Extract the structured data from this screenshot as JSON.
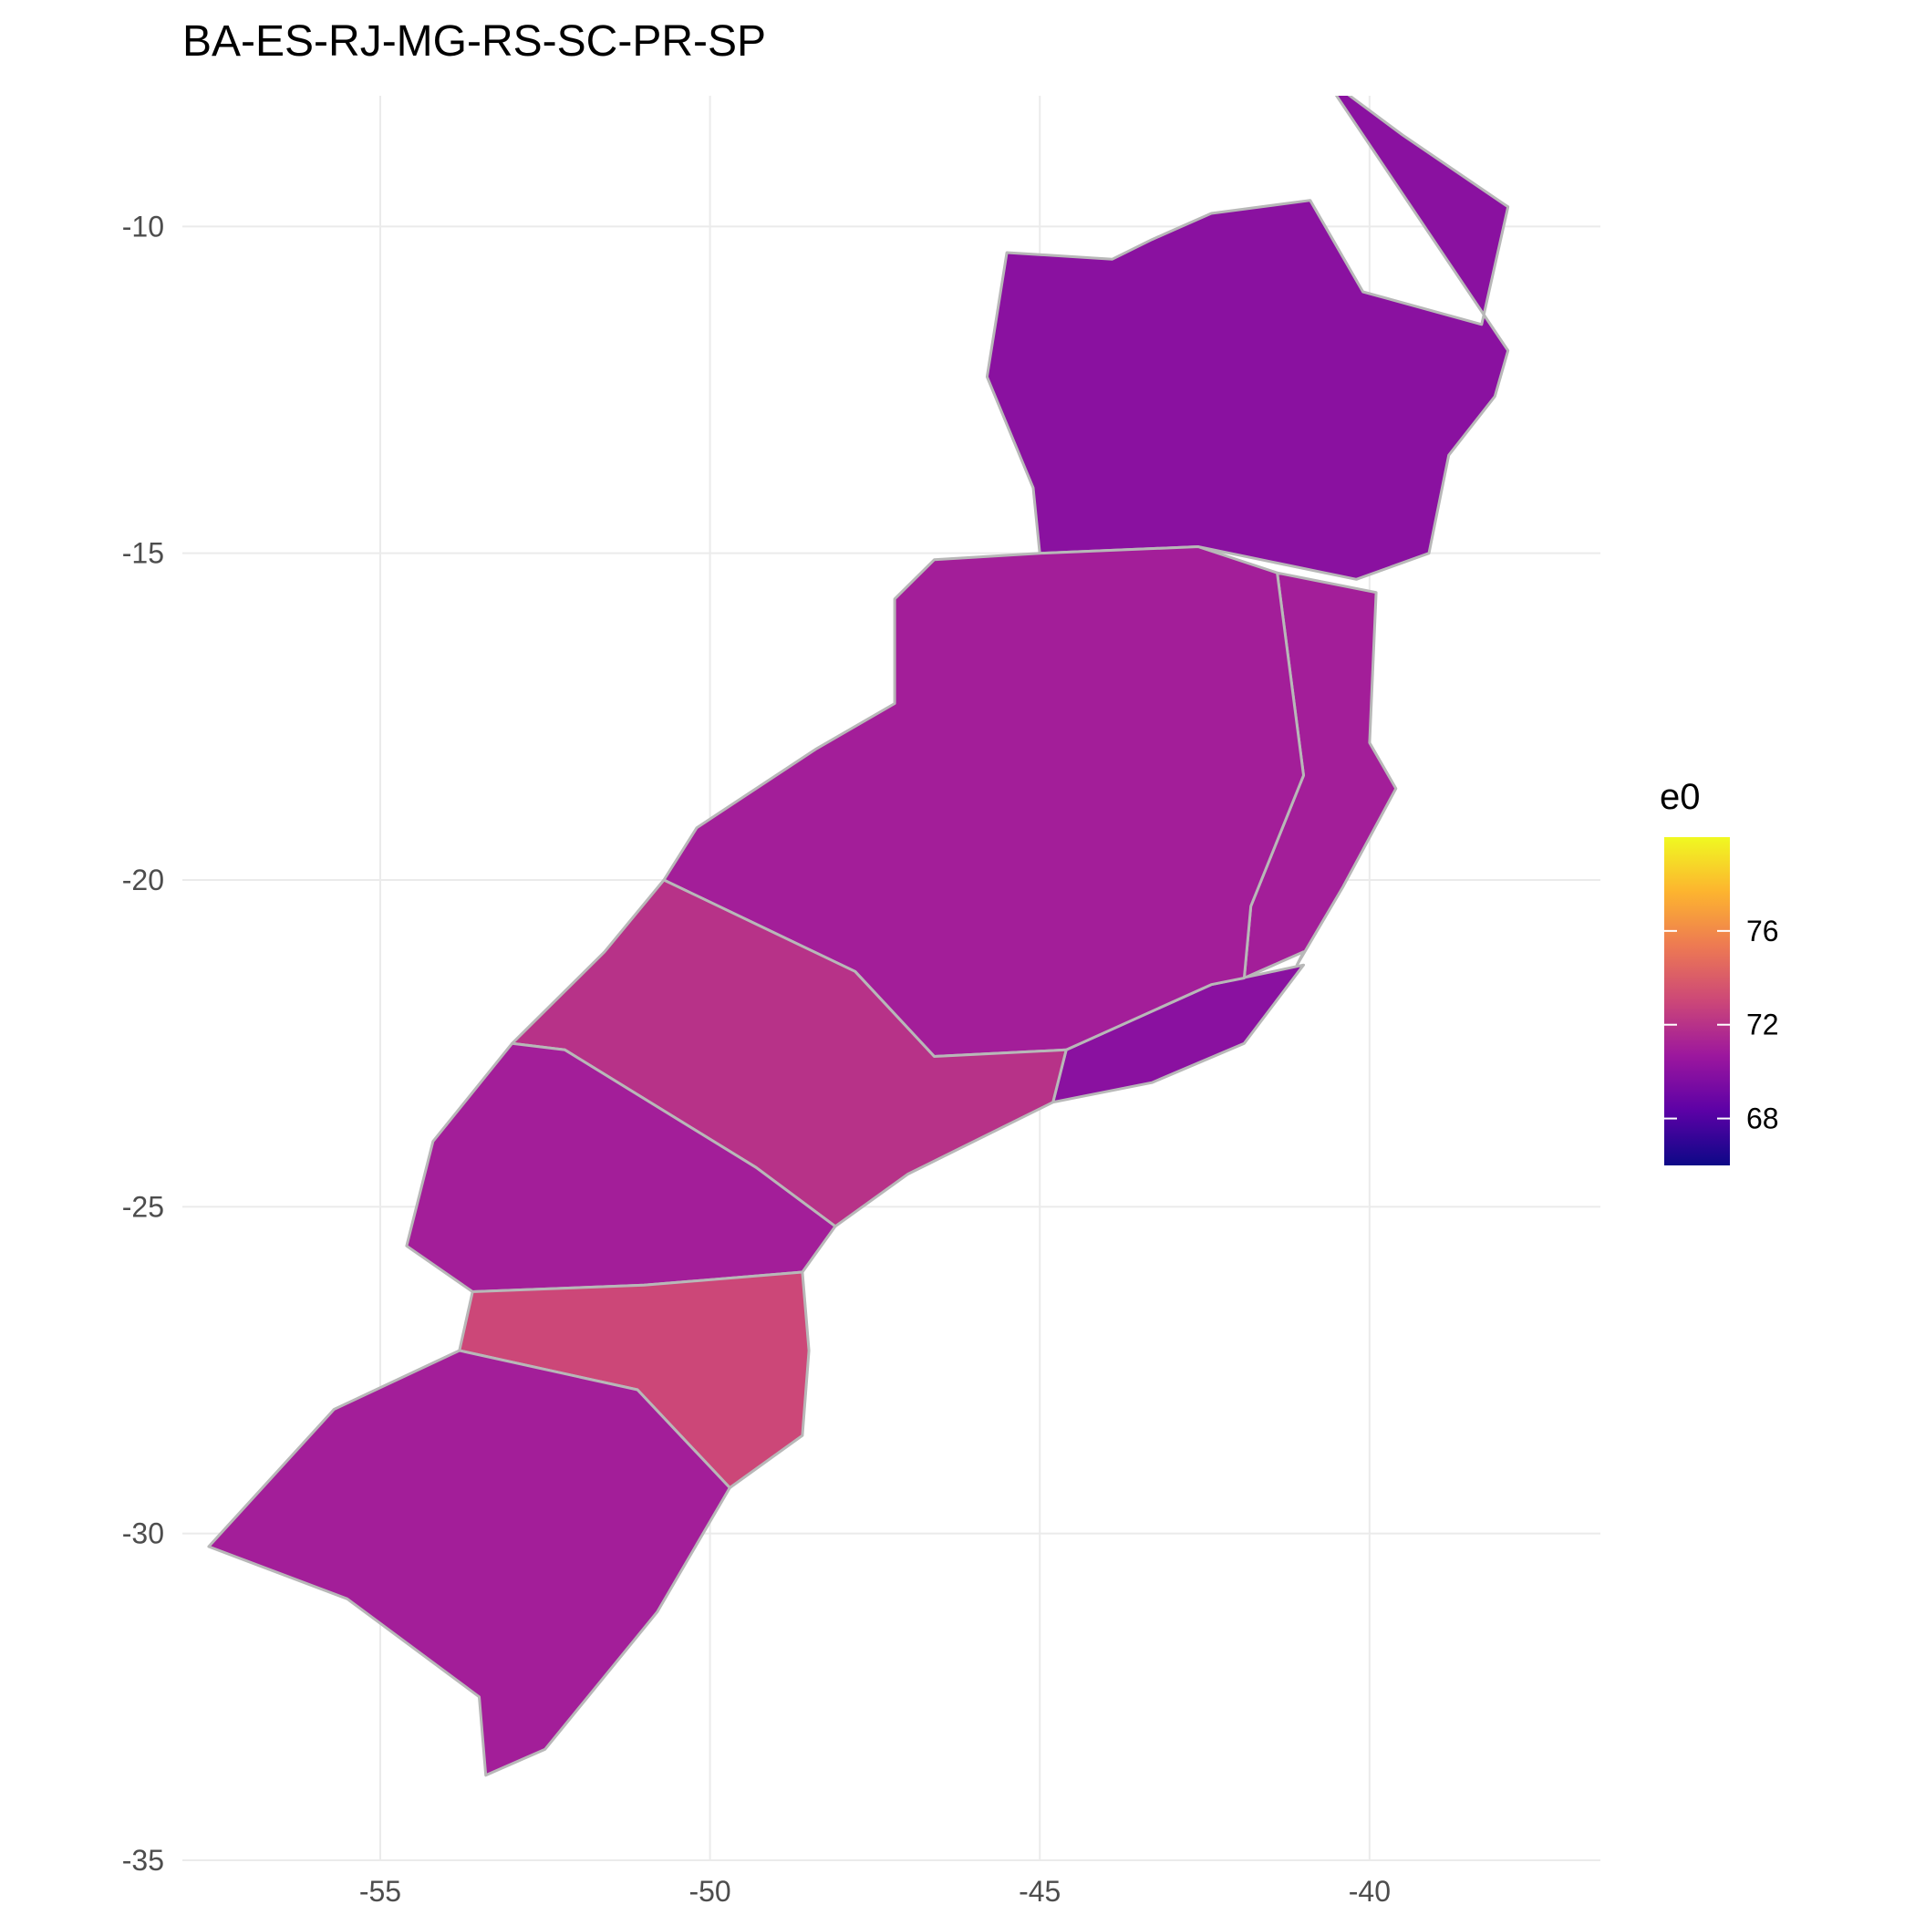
{
  "title": "BA-ES-RJ-MG-RS-SC-PR-SP",
  "chart_data": {
    "type": "heatmap",
    "subtype": "choropleth-map",
    "title": "BA-ES-RJ-MG-RS-SC-PR-SP",
    "x": {
      "label": "",
      "ticks": [
        "-55",
        "-50",
        "-45",
        "-40"
      ],
      "tick_values": [
        -55,
        -50,
        -45,
        -40
      ],
      "range": [
        -58,
        -36.5
      ]
    },
    "y": {
      "label": "",
      "ticks": [
        "-10",
        "-15",
        "-20",
        "-25",
        "-30",
        "-35"
      ],
      "tick_values": [
        -10,
        -15,
        -20,
        -25,
        -30,
        -35
      ],
      "range": [
        -35,
        -8
      ]
    },
    "grid": true,
    "legend": {
      "title": "e0",
      "position": "right",
      "ticks": [
        "76",
        "72",
        "68"
      ],
      "tick_values": [
        76,
        72,
        68
      ],
      "range": [
        66,
        80
      ],
      "palette": [
        "#0d0887",
        "#5c01a6",
        "#9c179e",
        "#cc4778",
        "#ed7953",
        "#fdb42f",
        "#f0f921"
      ]
    },
    "border_color": "#b8b8b8",
    "regions": [
      {
        "name": "",
        "lonlat": [
          [
            -40.7,
            -7.7
          ],
          [
            -39.5,
            -8.6
          ],
          [
            -37.9,
            -9.7
          ],
          [
            -38.3,
            -11.5
          ],
          [
            -40.1,
            -11.0
          ],
          [
            -40.9,
            -9.6
          ],
          [
            -42.4,
            -9.8
          ],
          [
            -43.3,
            -10.2
          ],
          [
            -43.9,
            -10.5
          ],
          [
            -45.5,
            -10.4
          ],
          [
            -45.8,
            -12.3
          ],
          [
            -45.1,
            -14.0
          ],
          [
            -45.0,
            -15.0
          ],
          [
            -42.6,
            -14.9
          ],
          [
            -40.2,
            -15.4
          ],
          [
            -39.1,
            -15.0
          ],
          [
            -38.8,
            -13.5
          ],
          [
            -38.1,
            -12.6
          ],
          [
            -37.9,
            -11.9
          ]
        ],
        "e0": 70
      },
      {
        "name": "",
        "lonlat": [
          [
            -41.4,
            -15.3
          ],
          [
            -39.9,
            -15.6
          ],
          [
            -40.0,
            -17.9
          ],
          [
            -39.6,
            -18.6
          ],
          [
            -40.4,
            -20.1
          ],
          [
            -41.1,
            -21.3
          ],
          [
            -41.0,
            -21.1
          ],
          [
            -41.9,
            -21.5
          ],
          [
            -41.8,
            -20.4
          ],
          [
            -41.0,
            -18.4
          ]
        ],
        "e0": 71
      },
      {
        "name": "",
        "lonlat": [
          [
            -41.0,
            -21.3
          ],
          [
            -42.4,
            -21.6
          ],
          [
            -44.6,
            -22.6
          ],
          [
            -44.8,
            -23.4
          ],
          [
            -43.3,
            -23.1
          ],
          [
            -41.9,
            -22.5
          ]
        ],
        "e0": 70
      },
      {
        "name": "",
        "lonlat": [
          [
            -45.0,
            -15.0
          ],
          [
            -42.6,
            -14.9
          ],
          [
            -41.4,
            -15.3
          ],
          [
            -41.0,
            -18.4
          ],
          [
            -41.8,
            -20.4
          ],
          [
            -41.9,
            -21.5
          ],
          [
            -42.4,
            -21.6
          ],
          [
            -44.6,
            -22.6
          ],
          [
            -46.6,
            -22.7
          ],
          [
            -47.8,
            -21.4
          ],
          [
            -50.7,
            -20.0
          ],
          [
            -50.2,
            -19.2
          ],
          [
            -48.4,
            -18.0
          ],
          [
            -47.2,
            -17.3
          ],
          [
            -47.2,
            -15.7
          ],
          [
            -46.6,
            -15.1
          ]
        ],
        "e0": 71
      },
      {
        "name": "",
        "lonlat": [
          [
            -50.7,
            -20.0
          ],
          [
            -47.8,
            -21.4
          ],
          [
            -46.6,
            -22.7
          ],
          [
            -44.6,
            -22.6
          ],
          [
            -44.8,
            -23.4
          ],
          [
            -47.0,
            -24.5
          ],
          [
            -48.1,
            -25.3
          ],
          [
            -49.3,
            -24.4
          ],
          [
            -52.2,
            -22.6
          ],
          [
            -53.0,
            -22.5
          ],
          [
            -51.6,
            -21.1
          ]
        ],
        "e0": 72
      },
      {
        "name": "",
        "lonlat": [
          [
            -53.0,
            -22.5
          ],
          [
            -52.2,
            -22.6
          ],
          [
            -49.3,
            -24.4
          ],
          [
            -48.1,
            -25.3
          ],
          [
            -48.6,
            -26.0
          ],
          [
            -51.0,
            -26.2
          ],
          [
            -53.6,
            -26.3
          ],
          [
            -54.6,
            -25.6
          ],
          [
            -54.2,
            -24.0
          ]
        ],
        "e0": 71
      },
      {
        "name": "",
        "lonlat": [
          [
            -53.6,
            -26.3
          ],
          [
            -51.0,
            -26.2
          ],
          [
            -48.6,
            -26.0
          ],
          [
            -48.5,
            -27.2
          ],
          [
            -48.6,
            -28.5
          ],
          [
            -49.7,
            -29.3
          ],
          [
            -51.1,
            -27.8
          ],
          [
            -53.8,
            -27.2
          ]
        ],
        "e0": 73
      },
      {
        "name": "",
        "lonlat": [
          [
            -53.8,
            -27.2
          ],
          [
            -51.1,
            -27.8
          ],
          [
            -49.7,
            -29.3
          ],
          [
            -50.8,
            -31.2
          ],
          [
            -52.5,
            -33.3
          ],
          [
            -53.4,
            -33.7
          ],
          [
            -53.5,
            -32.5
          ],
          [
            -55.5,
            -31.0
          ],
          [
            -57.6,
            -30.2
          ],
          [
            -55.7,
            -28.1
          ]
        ],
        "e0": 71
      }
    ]
  }
}
